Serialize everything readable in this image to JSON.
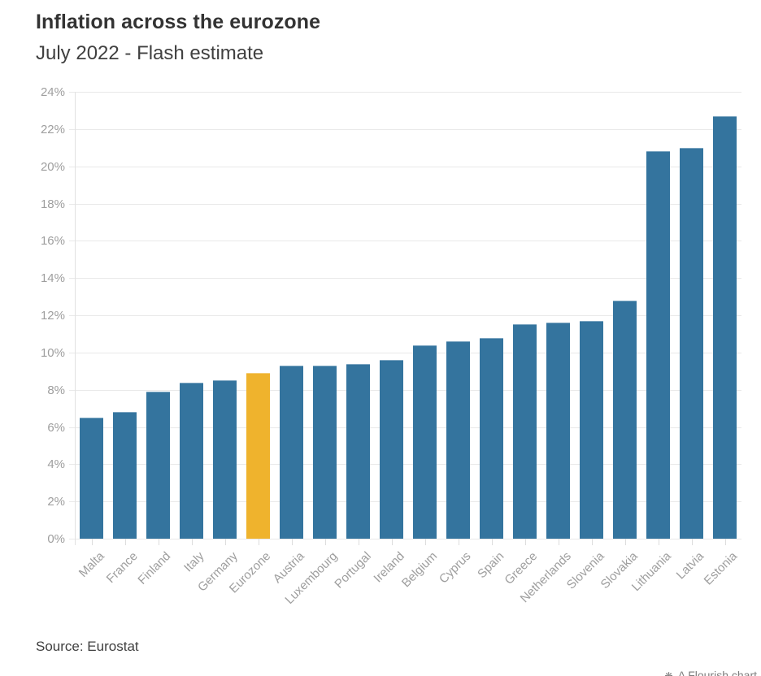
{
  "chart": {
    "title": "Inflation across the eurozone",
    "subtitle": "July 2022 - Flash estimate",
    "source": "Source: Eurostat",
    "watermark": "A Flourish chart",
    "watermark_icon": "flourish-logo-icon"
  },
  "colors": {
    "bar": "#34749E",
    "highlight": "#EFB32D",
    "grid": "#E9E9E9",
    "axis_text": "#9E9E9E",
    "title_text": "#333333"
  },
  "chart_data": {
    "type": "bar",
    "title": "Inflation across the eurozone",
    "subtitle": "July 2022 - Flash estimate",
    "categories": [
      "Malta",
      "France",
      "Finland",
      "Italy",
      "Germany",
      "Eurozone",
      "Austria",
      "Luxembourg",
      "Portugal",
      "Ireland",
      "Belgium",
      "Cyprus",
      "Spain",
      "Greece",
      "Netherlands",
      "Slovenia",
      "Slovakia",
      "Lithuania",
      "Latvia",
      "Estonia"
    ],
    "values": [
      6.5,
      6.8,
      7.9,
      8.4,
      8.5,
      8.9,
      9.3,
      9.3,
      9.4,
      9.6,
      10.4,
      10.6,
      10.8,
      11.5,
      11.6,
      11.7,
      12.8,
      20.8,
      21.0,
      22.7
    ],
    "highlight_category": "Eurozone",
    "xlabel": "",
    "ylabel": "",
    "ylim": [
      0,
      24
    ],
    "ytick_step": 2,
    "ytick_labels": [
      "0%",
      "2%",
      "4%",
      "6%",
      "8%",
      "10%",
      "12%",
      "14%",
      "16%",
      "18%",
      "20%",
      "22%",
      "24%"
    ],
    "grid": true,
    "legend": "none",
    "source": "Source: Eurostat"
  }
}
